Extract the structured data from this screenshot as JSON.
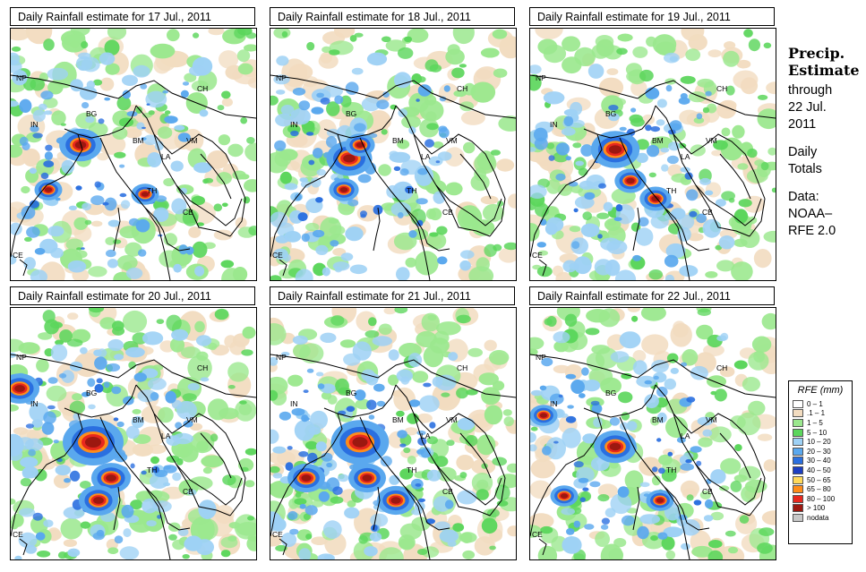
{
  "panels": [
    {
      "title": "Daily Rainfall estimate for  17 Jul., 2011",
      "seed": 1,
      "intensity": 0.7
    },
    {
      "title": "Daily Rainfall estimate for  18 Jul., 2011",
      "seed": 2,
      "intensity": 0.75
    },
    {
      "title": "Daily Rainfall estimate for  19 Jul., 2011",
      "seed": 3,
      "intensity": 0.8
    },
    {
      "title": "Daily Rainfall estimate for  20 Jul., 2011",
      "seed": 4,
      "intensity": 1.0
    },
    {
      "title": "Daily Rainfall estimate for  21 Jul., 2011",
      "seed": 5,
      "intensity": 0.95
    },
    {
      "title": "Daily Rainfall estimate for  22 Jul., 2011",
      "seed": 6,
      "intensity": 0.7
    }
  ],
  "map_labels": [
    "NP",
    "CH",
    "IN",
    "BG",
    "BM",
    "VM",
    "LA",
    "TH",
    "CB",
    "CE"
  ],
  "sidebar": {
    "heading_line1": "Precip.",
    "heading_line2": "Estimate",
    "through": "through",
    "date_line1": "22 Jul.",
    "date_line2": "2011",
    "totals_line1": "Daily",
    "totals_line2": "Totals",
    "data_line1": "Data:",
    "data_line2": "NOAA–",
    "data_line3": "RFE 2.0"
  },
  "legend": {
    "title": "RFE (mm)",
    "entries": [
      {
        "label": "0 – 1",
        "color": "#ffffff"
      },
      {
        "label": ".1 – 1",
        "color": "#f2dcc0"
      },
      {
        "label": "1 – 5",
        "color": "#9be88e"
      },
      {
        "label": "5 – 10",
        "color": "#5cd65c"
      },
      {
        "label": "10 – 20",
        "color": "#9ed1f5"
      },
      {
        "label": "20 – 30",
        "color": "#5aa8ee"
      },
      {
        "label": "30 – 40",
        "color": "#2a6fe0"
      },
      {
        "label": "40 – 50",
        "color": "#1c3fc2"
      },
      {
        "label": "50 – 65",
        "color": "#ffd95a"
      },
      {
        "label": "65 – 80",
        "color": "#ff8c1a"
      },
      {
        "label": "80 – 100",
        "color": "#e8281e"
      },
      {
        "label": "> 100",
        "color": "#9c1810"
      },
      {
        "label": "nodata",
        "color": "#c8c8c8"
      }
    ]
  }
}
